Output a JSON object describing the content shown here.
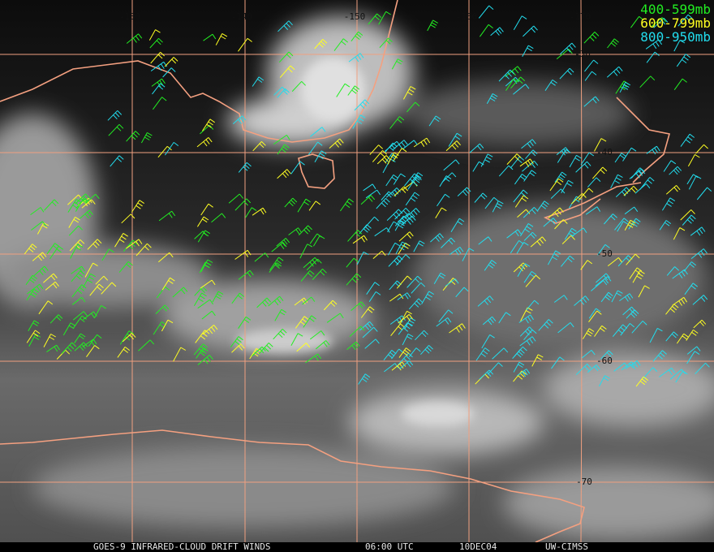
{
  "map": {
    "longitude_labels": [
      "-130",
      "-140",
      "-150",
      "-160",
      "-170"
    ],
    "latitude_labels": [
      "-30",
      "-40",
      "-50",
      "-60",
      "-70"
    ],
    "legend": [
      {
        "label": "400-599mb",
        "color": "#22ee22"
      },
      {
        "label": "600-799mb",
        "color": "#ffff22"
      },
      {
        "label": "800-950mb",
        "color": "#22ddee"
      }
    ],
    "footer": [
      "GOES-9 INFRARED-CLOUD DRIFT WINDS",
      "06:00 UTC",
      "10DEC04",
      "UW-CIMSS"
    ]
  }
}
